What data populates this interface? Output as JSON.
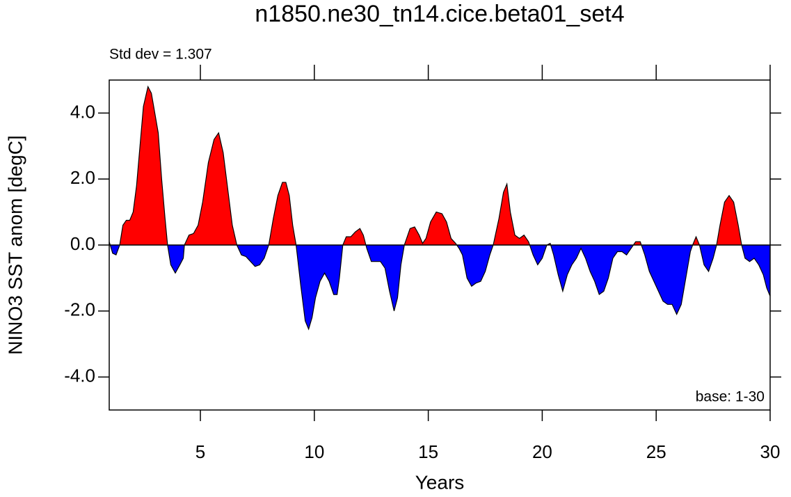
{
  "chart_data": {
    "type": "area",
    "title": "n1850.ne30_tn14.cice.beta01_set4",
    "annotation_left": "Std dev = 1.307",
    "annotation_right": "base: 1-30",
    "x_label": "Years",
    "y_label": "NINO3 SST anom [degC]",
    "above_color": "#ff0000",
    "below_color": "#0000ff",
    "line_color": "#000000",
    "xlim": [
      1,
      30
    ],
    "ylim": [
      -5,
      5
    ],
    "xticks": [
      5,
      10,
      15,
      20,
      25,
      30
    ],
    "yticks": [
      {
        "value": 4,
        "label": "4.0"
      },
      {
        "value": 2,
        "label": "2.0"
      },
      {
        "value": 0,
        "label": "0.0"
      },
      {
        "value": -2,
        "label": "-2.0"
      },
      {
        "value": -4,
        "label": "-4.0"
      }
    ],
    "x": [
      1.0,
      1.15,
      1.3,
      1.46,
      1.6,
      1.75,
      1.9,
      2.05,
      2.2,
      2.35,
      2.5,
      2.7,
      2.85,
      3.0,
      3.15,
      3.3,
      3.45,
      3.56,
      3.7,
      3.9,
      4.1,
      4.25,
      4.3,
      4.5,
      4.7,
      4.9,
      5.1,
      5.35,
      5.6,
      5.8,
      6.0,
      6.2,
      6.4,
      6.6,
      6.8,
      7.0,
      7.2,
      7.4,
      7.6,
      7.8,
      8.0,
      8.2,
      8.4,
      8.6,
      8.75,
      8.9,
      9.05,
      9.2,
      9.4,
      9.6,
      9.75,
      9.9,
      10.05,
      10.25,
      10.45,
      10.65,
      10.85,
      11.0,
      11.1,
      11.25,
      11.4,
      11.6,
      11.8,
      12.0,
      12.15,
      12.3,
      12.5,
      12.7,
      12.9,
      13.1,
      13.3,
      13.5,
      13.65,
      13.8,
      13.95,
      14.2,
      14.4,
      14.6,
      14.75,
      14.9,
      15.1,
      15.35,
      15.6,
      15.8,
      16.0,
      16.2,
      16.35,
      16.5,
      16.7,
      16.9,
      17.1,
      17.3,
      17.5,
      17.7,
      17.85,
      18.1,
      18.3,
      18.45,
      18.6,
      18.8,
      19.0,
      19.2,
      19.4,
      19.6,
      19.8,
      20.0,
      20.2,
      20.35,
      20.5,
      20.7,
      20.9,
      21.1,
      21.3,
      21.5,
      21.7,
      21.9,
      22.1,
      22.3,
      22.5,
      22.7,
      22.9,
      23.1,
      23.3,
      23.5,
      23.7,
      23.9,
      24.1,
      24.3,
      24.5,
      24.7,
      24.9,
      25.1,
      25.3,
      25.5,
      25.7,
      25.9,
      26.1,
      26.3,
      26.5,
      26.6,
      26.75,
      26.9,
      27.1,
      27.3,
      27.5,
      27.65,
      27.8,
      28.0,
      28.2,
      28.4,
      28.6,
      28.75,
      28.9,
      29.1,
      29.3,
      29.5,
      29.7,
      29.85,
      30.0
    ],
    "values": [
      0.1,
      -0.25,
      -0.3,
      0.0,
      0.6,
      0.75,
      0.75,
      1.0,
      1.8,
      3.0,
      4.2,
      4.8,
      4.6,
      4.0,
      3.4,
      2.0,
      0.8,
      0.0,
      -0.6,
      -0.85,
      -0.6,
      -0.4,
      0.0,
      0.3,
      0.35,
      0.6,
      1.3,
      2.5,
      3.2,
      3.4,
      2.8,
      1.7,
      0.6,
      0.0,
      -0.3,
      -0.35,
      -0.5,
      -0.65,
      -0.6,
      -0.4,
      0.0,
      0.8,
      1.5,
      1.9,
      1.9,
      1.5,
      0.6,
      0.0,
      -1.2,
      -2.3,
      -2.55,
      -2.2,
      -1.6,
      -1.1,
      -0.85,
      -1.1,
      -1.5,
      -1.5,
      -1.0,
      0.0,
      0.25,
      0.25,
      0.4,
      0.5,
      0.3,
      -0.1,
      -0.5,
      -0.5,
      -0.5,
      -0.7,
      -1.4,
      -2.0,
      -1.6,
      -0.6,
      0.0,
      0.5,
      0.55,
      0.3,
      0.05,
      0.2,
      0.7,
      1.0,
      0.95,
      0.7,
      0.2,
      0.05,
      -0.1,
      -0.3,
      -1.0,
      -1.25,
      -1.15,
      -1.1,
      -0.8,
      -0.3,
      0.0,
      0.8,
      1.6,
      1.85,
      1.0,
      0.3,
      0.2,
      0.3,
      0.1,
      -0.3,
      -0.6,
      -0.4,
      0.0,
      0.05,
      -0.3,
      -0.9,
      -1.4,
      -0.9,
      -0.6,
      -0.4,
      -0.1,
      -0.4,
      -0.8,
      -1.1,
      -1.5,
      -1.4,
      -1.0,
      -0.4,
      -0.2,
      -0.2,
      -0.3,
      -0.1,
      0.1,
      0.1,
      -0.3,
      -0.8,
      -1.1,
      -1.4,
      -1.7,
      -1.8,
      -1.8,
      -2.1,
      -1.8,
      -1.0,
      -0.2,
      0.0,
      0.25,
      0.0,
      -0.6,
      -0.8,
      -0.4,
      0.0,
      0.6,
      1.3,
      1.5,
      1.3,
      0.6,
      0.0,
      -0.4,
      -0.5,
      -0.4,
      -0.6,
      -0.9,
      -1.3,
      -1.55
    ]
  }
}
